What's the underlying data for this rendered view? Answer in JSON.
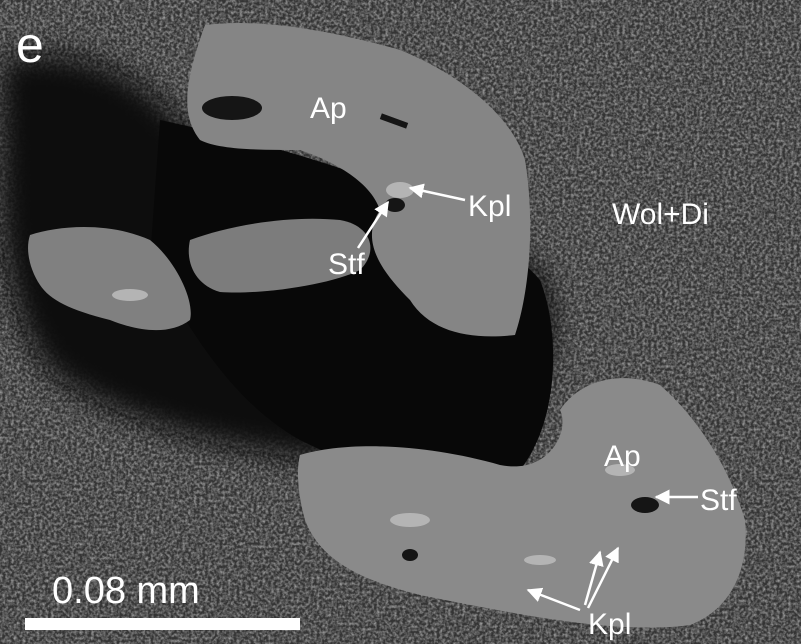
{
  "image": {
    "panel_label": "e",
    "labels": [
      {
        "text": "Ap"
      },
      {
        "text": "Kpl"
      },
      {
        "text": "Wol+Di"
      },
      {
        "text": "Stf"
      },
      {
        "text": "Ap"
      },
      {
        "text": "Stf"
      },
      {
        "text": "Kpl"
      }
    ],
    "scale_bar": {
      "label": "0.08 mm"
    }
  }
}
